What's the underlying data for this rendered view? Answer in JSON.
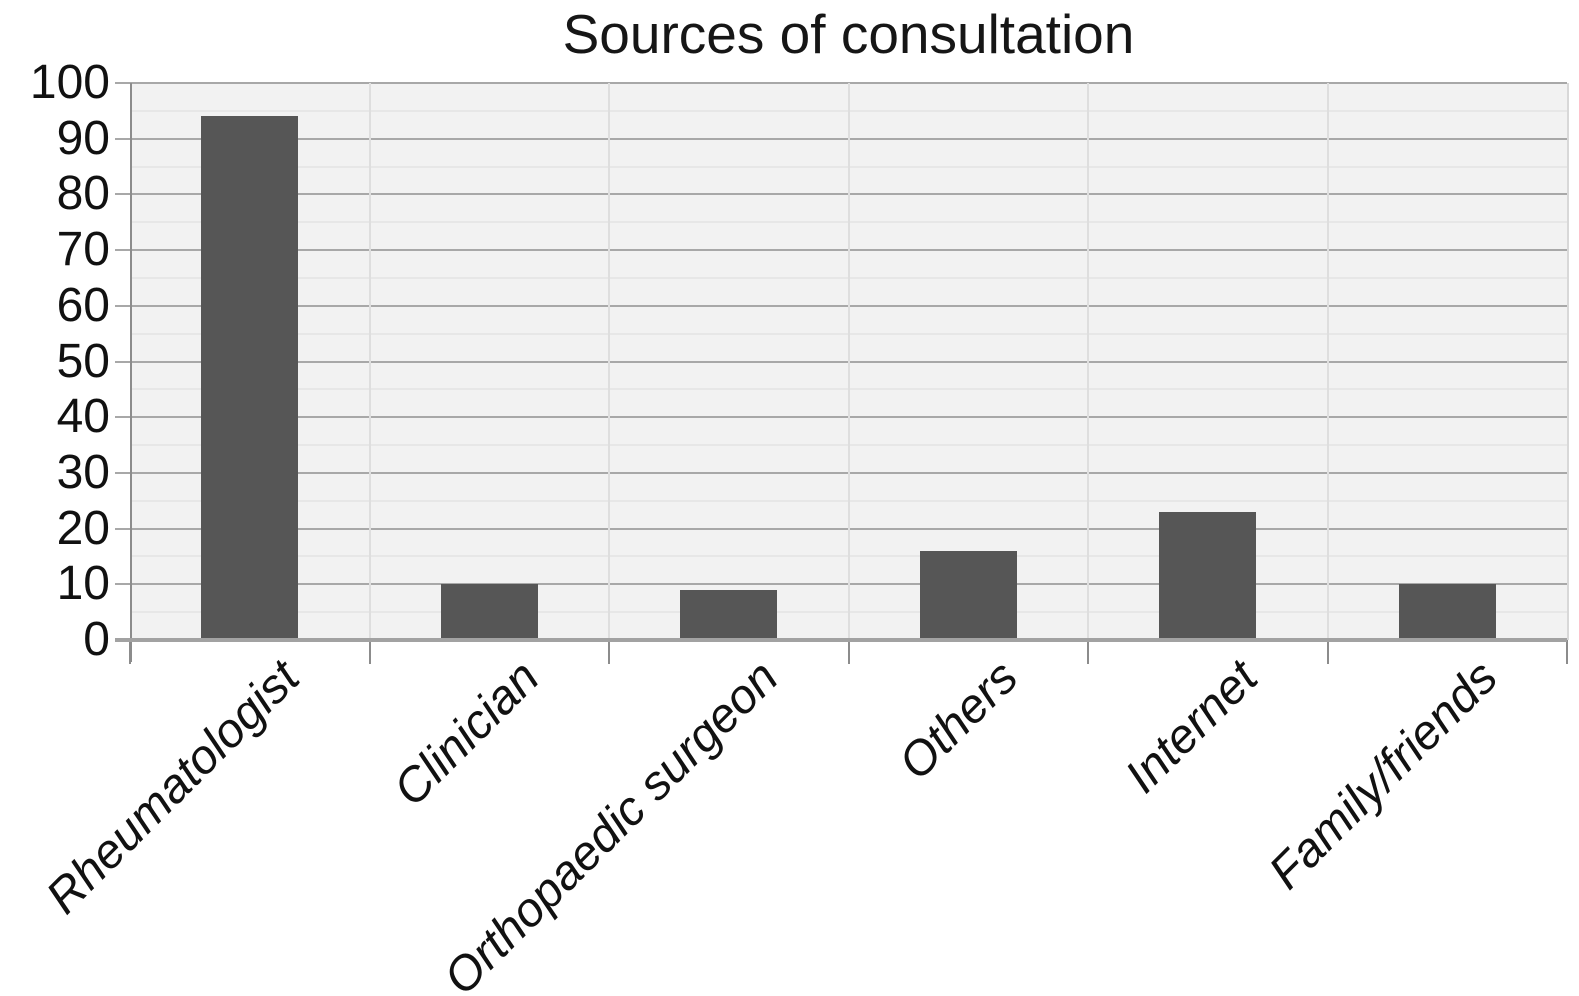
{
  "title": "Sources of consultation",
  "chart_data": {
    "type": "bar",
    "title": "Sources of consultation",
    "categories": [
      "Rheumatologist",
      "Clinician",
      "Orthopaedic surgeon",
      "Others",
      "Internet",
      "Family/friends"
    ],
    "values": [
      94,
      10,
      9,
      16,
      23,
      10
    ],
    "xlabel": "",
    "ylabel": "",
    "ylim": [
      0,
      100
    ],
    "yticks": [
      0,
      10,
      20,
      30,
      40,
      50,
      60,
      70,
      80,
      90,
      100
    ],
    "minor_tick_step": 5,
    "grid": "horizontal major and minor gridlines, faint vertical category separators",
    "legend": "none",
    "bar_color": "#565656",
    "plot_bg": "#f2f2f2",
    "major_grid_color": "#a8a8a8",
    "minor_grid_color": "#e7e7e7",
    "axis_color": "#8c8c8c",
    "text_color": "#111111"
  }
}
